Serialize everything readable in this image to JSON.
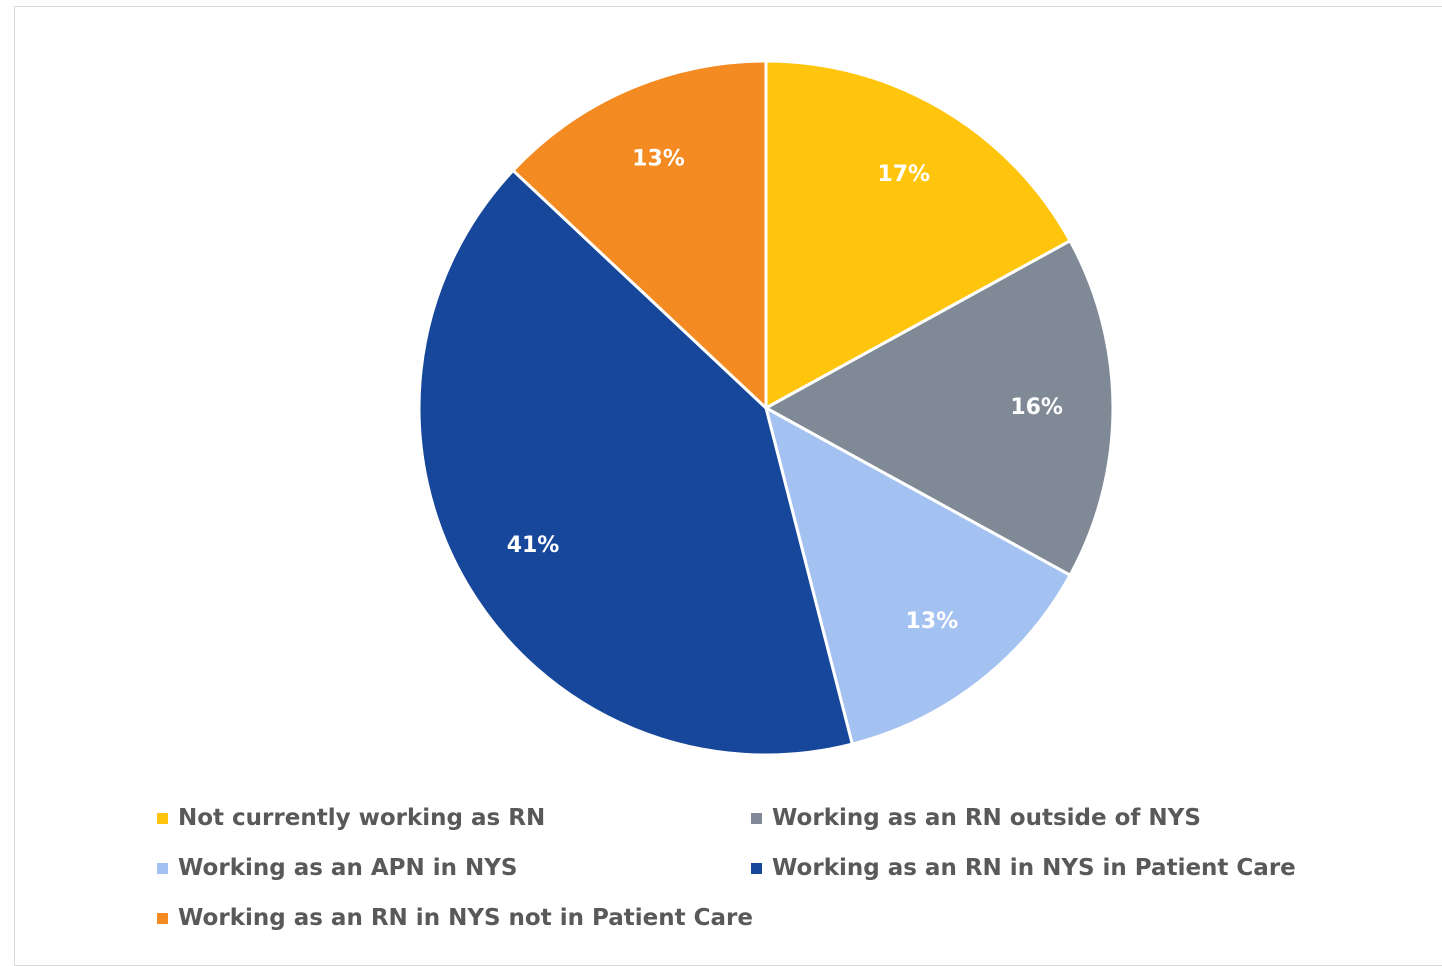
{
  "chart_data": {
    "type": "pie",
    "title": "",
    "slices": [
      {
        "name": "Not currently working as RN",
        "value": 17,
        "label": "17%",
        "color": "#FFC40C"
      },
      {
        "name": "Working as an RN outside of NYS",
        "value": 16,
        "label": "16%",
        "color": "#7F8A96"
      },
      {
        "name": "Working as an APN  in NYS",
        "value": 13,
        "label": "13%",
        "color": "#A4C2F1"
      },
      {
        "name": "Working as an RN in NYS in Patient Care",
        "value": 41,
        "label": "41%",
        "color": "#16479B"
      },
      {
        "name": "Working as an RN in NYS not in Patient Care",
        "value": 13,
        "label": "13%",
        "color": "#F48A22"
      }
    ],
    "legend": {
      "position": "bottom"
    }
  }
}
